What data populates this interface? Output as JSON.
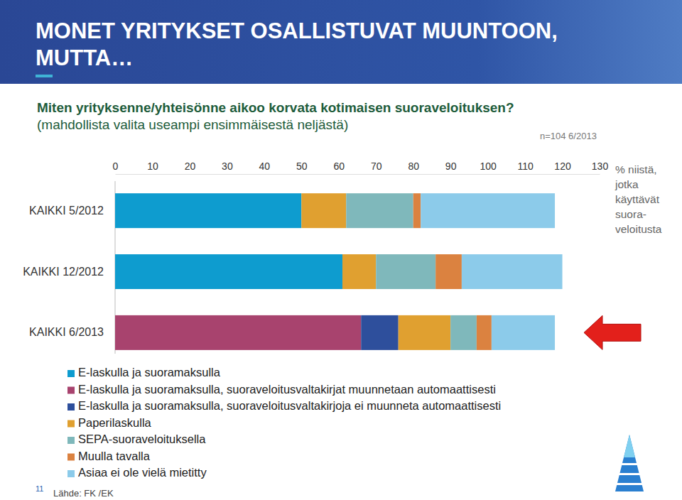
{
  "chart_data": {
    "type": "bar",
    "orientation": "horizontal",
    "stacked": true,
    "title": "MONET YRITYKSET OSALLISTUVAT MUUNTOON, MUTTA…",
    "subtitle": [
      "Miten yrityksenne/yhteisönne aikoo korvata kotimaisen suoraveloituksen?",
      "(mahdollista valita useampi ensimmäisestä neljästä)"
    ],
    "annotations": [
      "n=104 6/2013",
      "11",
      "Lähde: FK /EK"
    ],
    "x_label": [
      "% niistä,",
      "jotka",
      "käyttävät",
      "suora-",
      "veloitusta"
    ],
    "categories": [
      "KAIKKI 5/2012",
      "KAIKKI 12/2012",
      "KAIKKI 6/2013"
    ],
    "series": [
      {
        "name": "E-laskulla ja suoramaksulla",
        "color": "#0e9ccf",
        "values": [
          50,
          61,
          0
        ]
      },
      {
        "name": "E-laskulla ja suoramaksulla, suoraveloitusvaltakirjat muunnetaan automaattisesti",
        "color": "#a8436e",
        "values": [
          0,
          0,
          66
        ]
      },
      {
        "name": "E-laskulla ja suoramaksulla, suoraveloitusvaltakirjoja ei muunneta automaattisesti",
        "color": "#2e4f9c",
        "values": [
          0,
          0,
          10
        ]
      },
      {
        "name": "Paperilaskulla",
        "color": "#e0a030",
        "values": [
          12,
          9,
          14
        ]
      },
      {
        "name": "SEPA-suoraveloituksella",
        "color": "#7fb8bb",
        "values": [
          18,
          16,
          7
        ]
      },
      {
        "name": "Muulla tavalla",
        "color": "#db8240",
        "values": [
          2,
          7,
          4
        ]
      },
      {
        "name": "Asiaa ei ole vielä mietitty",
        "color": "#8ccbea",
        "values": [
          36,
          27,
          17
        ]
      }
    ],
    "xlim": [
      0,
      130
    ],
    "xticks": [
      0,
      10,
      20,
      30,
      40,
      50,
      60,
      70,
      80,
      90,
      100,
      110,
      120,
      130
    ],
    "grid": false,
    "legend": "bottom"
  }
}
